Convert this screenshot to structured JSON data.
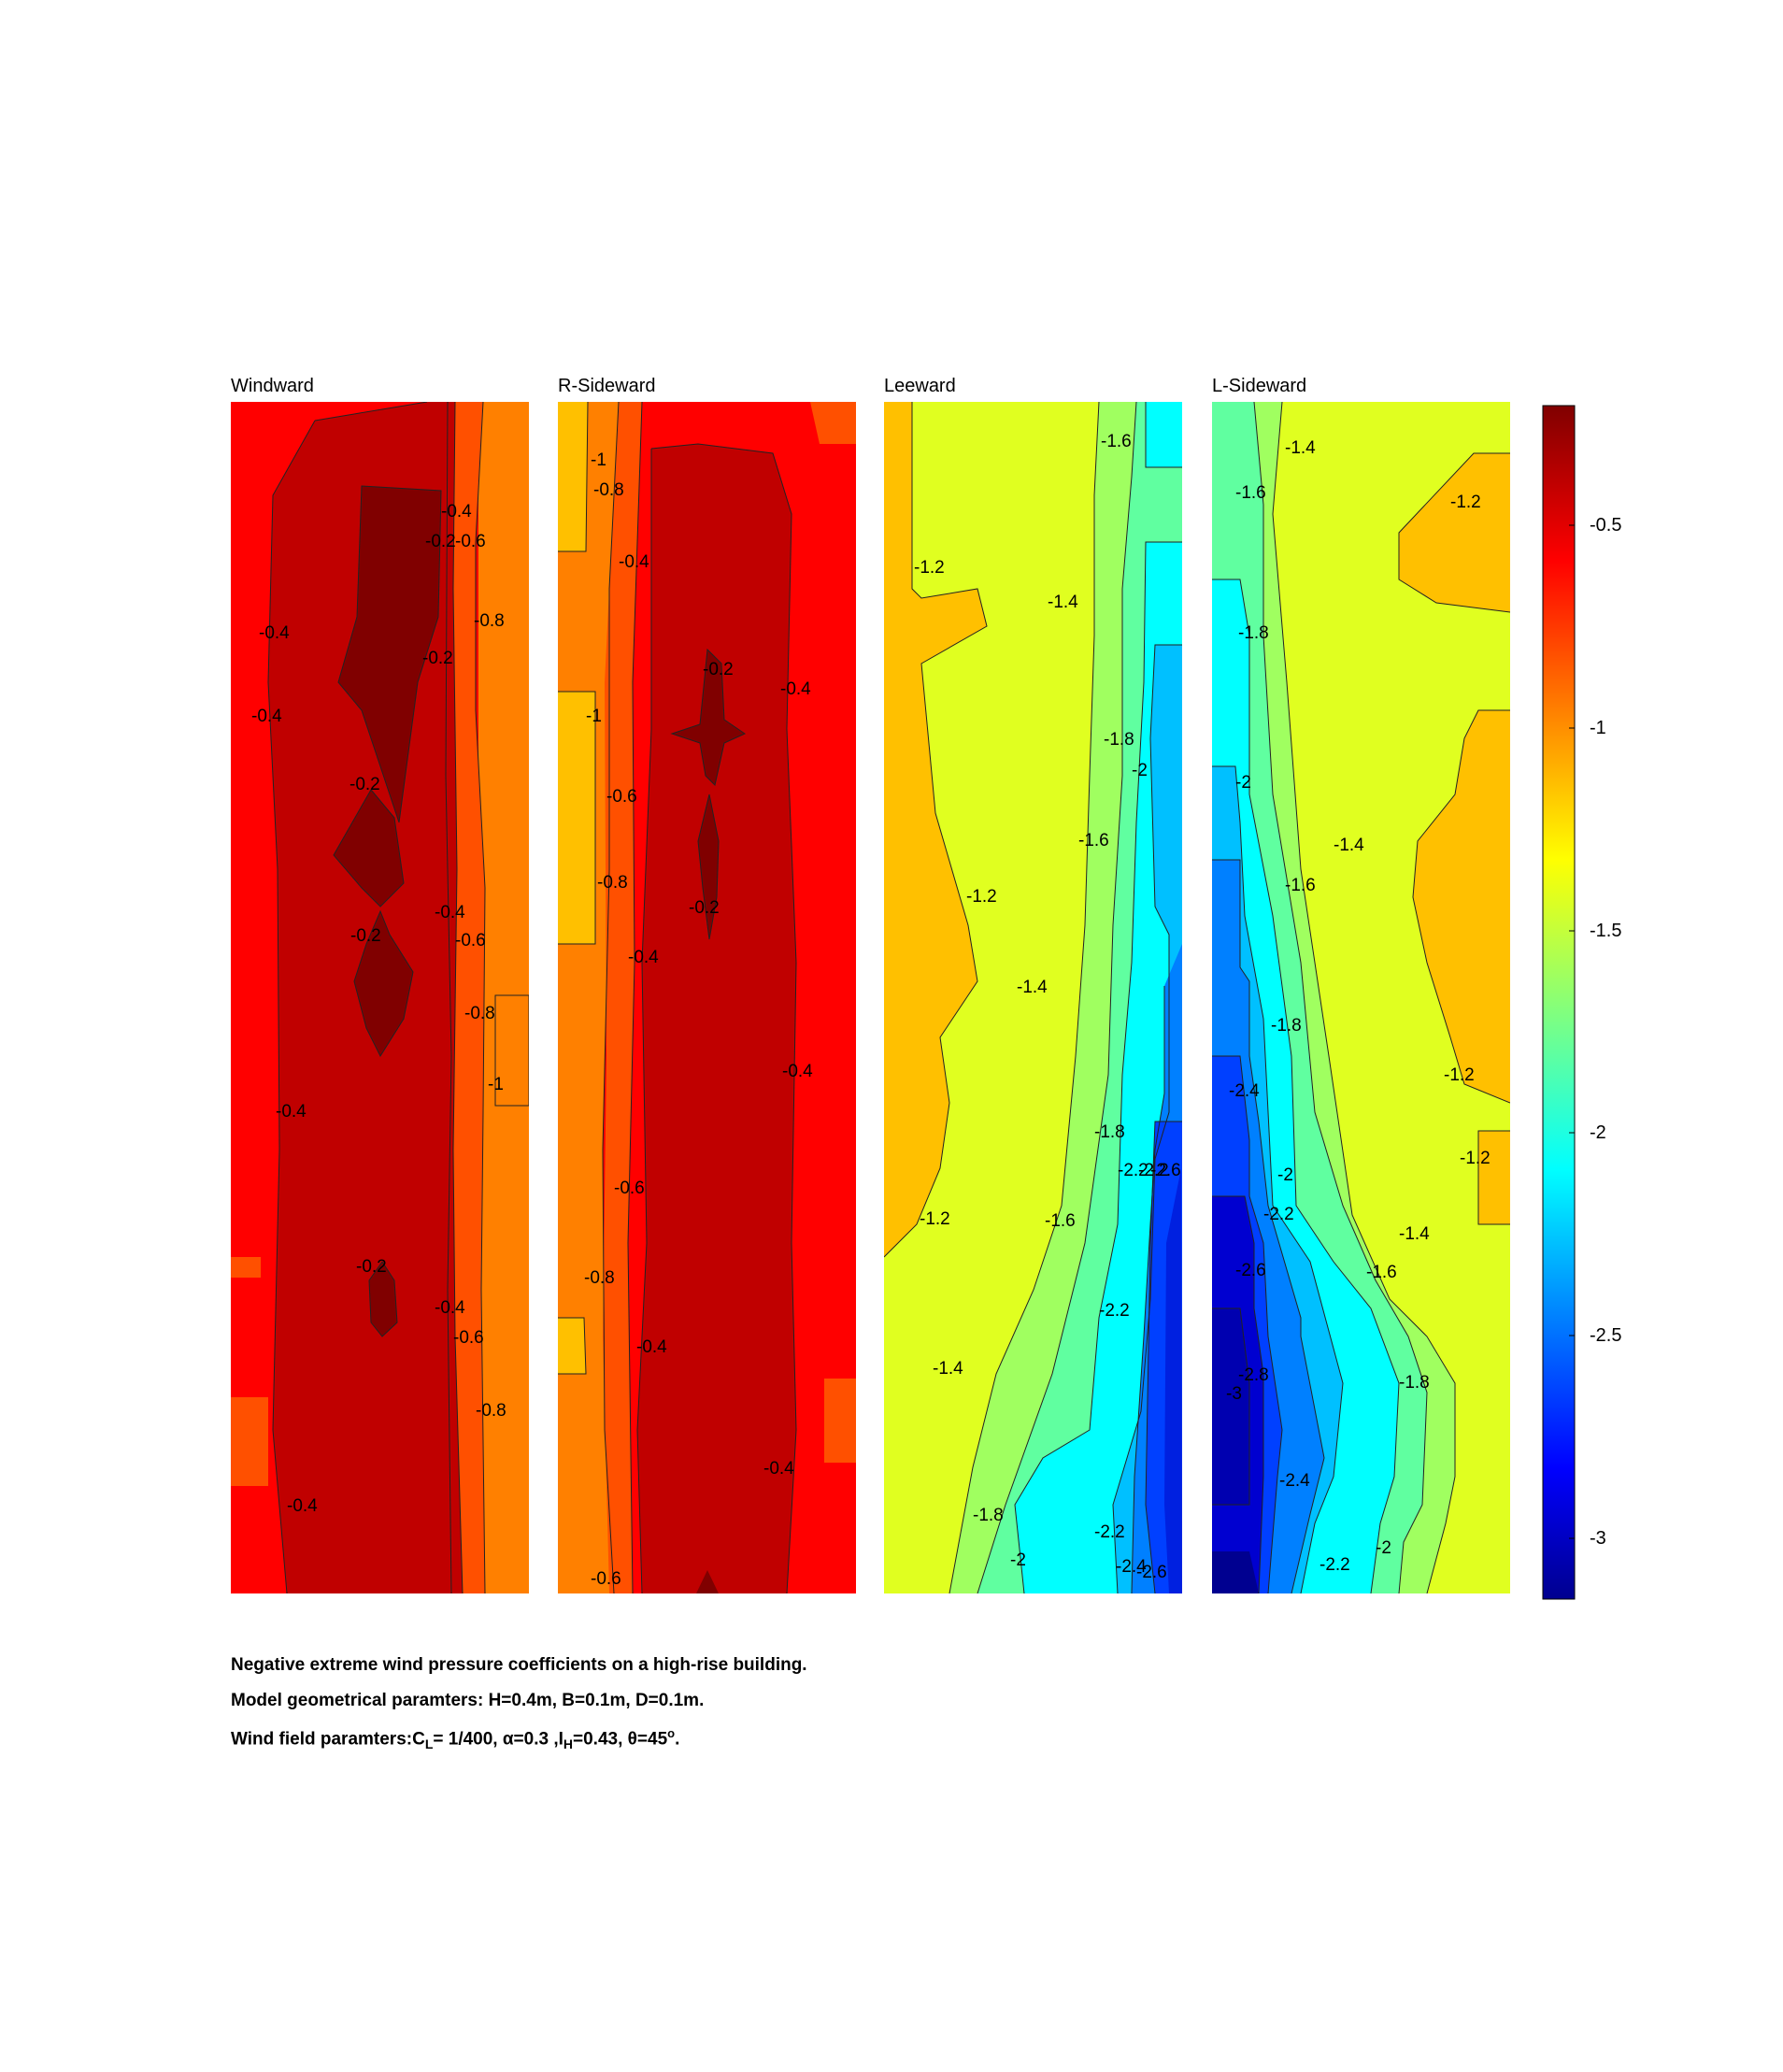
{
  "chart_data": {
    "type": "contour",
    "panels": [
      {
        "title": "Windward",
        "fill_colors": [
          "#ff0000",
          "#c00000",
          "#800000",
          "#ff5000",
          "#ff8000"
        ],
        "contour_labels": [
          "-0.4",
          "-0.2",
          "-0.6",
          "-0.8",
          "-0.4",
          "-0.2",
          "-0.4",
          "-0.2",
          "-0.4",
          "-0.6",
          "-0.2",
          "-0.8",
          "-1",
          "-0.4",
          "-0.2",
          "-0.4",
          "-0.6",
          "-0.8",
          "-0.4"
        ]
      },
      {
        "title": "R-Sideward",
        "fill_colors": [
          "#ff0000",
          "#c00000",
          "#800000",
          "#ff5000",
          "#ff8000",
          "#ffc000"
        ],
        "contour_labels": [
          "-1",
          "-0.8",
          "-0.4",
          "-0.2",
          "-0.4",
          "-1",
          "-0.6",
          "-0.8",
          "-0.2",
          "-0.4",
          "-0.4",
          "-0.6",
          "-0.8",
          "-0.4",
          "-0.4",
          "-0.6"
        ]
      },
      {
        "title": "Leeward",
        "fill_colors": [
          "#ffc000",
          "#e0ff20",
          "#a0ff60",
          "#60ffa0",
          "#00ffff",
          "#00c0ff",
          "#0080ff",
          "#0040ff"
        ],
        "contour_labels": [
          "-1.6",
          "-1.2",
          "-1.4",
          "-1.8",
          "-2",
          "-1.6",
          "-1.2",
          "-1.4",
          "-1.8",
          "-2.2",
          "-2.2",
          "-2.6",
          "-1.2",
          "-1.6",
          "-2.2",
          "-1.4",
          "-1.8",
          "-2",
          "-2.2",
          "-2.4",
          "-2.6"
        ]
      },
      {
        "title": "L-Sideward",
        "fill_colors": [
          "#e0ff20",
          "#ffc000",
          "#a0ff60",
          "#60ffa0",
          "#00ffff",
          "#00c0ff",
          "#0080ff",
          "#0040ff",
          "#0000c0",
          "#000090"
        ],
        "contour_labels": [
          "-1.4",
          "-1.6",
          "-1.2",
          "-1.8",
          "-2",
          "-1.4",
          "-1.6",
          "-1.8",
          "-2.4",
          "-1.2",
          "-2",
          "-1.2",
          "-2.2",
          "-1.4",
          "-2.6",
          "-1.6",
          "-2.8",
          "-3",
          "-1.8",
          "-2.4",
          "-2.2",
          "-2"
        ]
      }
    ],
    "colorbar": {
      "ticks": [
        "-0.5",
        "-1",
        "-1.5",
        "-2",
        "-2.5",
        "-3"
      ],
      "colormap": "jet",
      "range": [
        -3.15,
        -0.2
      ]
    }
  },
  "caption": {
    "line1": "Negative extreme wind pressure coefficients on a high-rise building.",
    "line2": "Model geometrical paramters: H=0.4m, B=0.1m, D=0.1m.",
    "line3_prefix": "Wind field paramters:C",
    "line3_sub1": "L",
    "line3_mid1": "= 1/400, α=0.3 ,I",
    "line3_sub2": "H",
    "line3_mid2": "=0.43, θ=45",
    "line3_sup": "o",
    "line3_end": "."
  }
}
